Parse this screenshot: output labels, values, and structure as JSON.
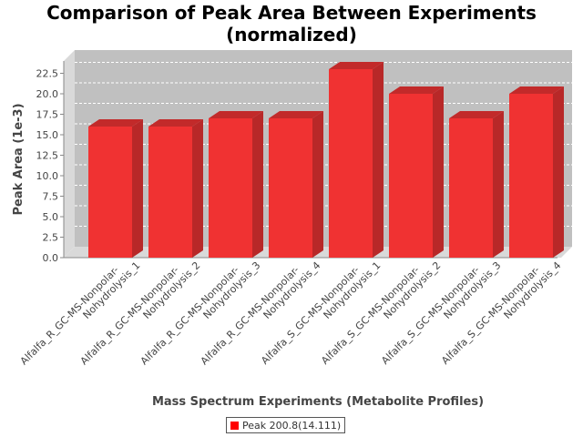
{
  "chart_data": {
    "type": "bar",
    "title_lines": [
      "Comparison of Peak Area Between Experiments",
      "(normalized)"
    ],
    "xlabel": "Mass Spectrum Experiments (Metabolite Profiles)",
    "ylabel": "Peak Area (1e-3)",
    "ylim": [
      0,
      24
    ],
    "yticks": [
      "0.0",
      "2.5",
      "5.0",
      "7.5",
      "10.0",
      "12.5",
      "15.0",
      "17.5",
      "20.0",
      "22.5"
    ],
    "grid": true,
    "legend_position": "bottom-center",
    "categories": [
      [
        "Alfalfa_R_GC-MS-Nonpolar-",
        "Nohydrolysis_1"
      ],
      [
        "Alfalfa_R_GC-MS-Nonpolar-",
        "Nohydrolysis_2"
      ],
      [
        "Alfalfa_R_GC-MS-Nonpolar-",
        "Nohydrolysis_3"
      ],
      [
        "Alfalfa_R_GC-MS-Nonpolar-",
        "Nohydrolysis_4"
      ],
      [
        "Alfalfa_S_GC-MS-Nonpolar-",
        "Nohydrolysis_1"
      ],
      [
        "Alfalfa_S_GC-MS-Nonpolar-",
        "Nohydrolysis_2"
      ],
      [
        "Alfalfa_S_GC-MS-Nonpolar-",
        "Nohydrolysis_3"
      ],
      [
        "Alfalfa_S_GC-MS-Nonpolar-",
        "Nohydrolysis_4"
      ]
    ],
    "series": [
      {
        "name": "Peak 200.8(14.111)",
        "color": "#ff0000",
        "values": [
          16,
          16,
          17,
          17,
          23,
          20,
          17,
          20
        ]
      }
    ]
  }
}
